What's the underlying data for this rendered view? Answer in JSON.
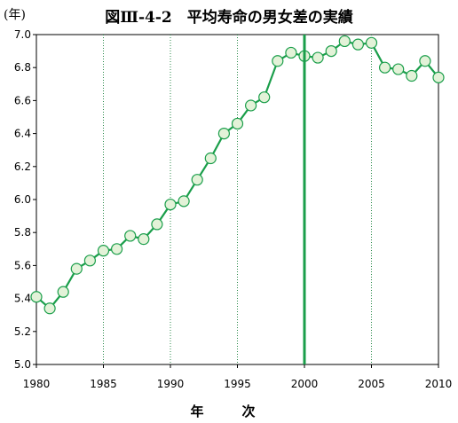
{
  "title": "図Ⅲ-4-2　平均寿命の男女差の実績",
  "y_unit": "(年)",
  "chart_data": {
    "type": "line",
    "title": "図Ⅲ-4-2　平均寿命の男女差の実績",
    "xlabel": "年　次",
    "ylabel": "(年)",
    "xlim": [
      1980,
      2010
    ],
    "ylim": [
      5.0,
      7.0
    ],
    "x_ticks": [
      1980,
      1985,
      1990,
      1995,
      2000,
      2005,
      2010
    ],
    "y_ticks": [
      5.0,
      5.2,
      5.4,
      5.6,
      5.8,
      6.0,
      6.2,
      6.4,
      6.6,
      6.8,
      7.0
    ],
    "y_tick_labels": [
      "5.0",
      "5.2",
      "5.4",
      "5.6",
      "5.8",
      "6.0",
      "6.2",
      "6.4",
      "6.6",
      "6.8",
      "7.0"
    ],
    "grid": "vertical dotted at 1985, 1990, 1995, 2005",
    "highlight_x": 2000,
    "series": [
      {
        "color": "#1a9e4a",
        "marker_fill": "#e3f2d8",
        "x": [
          1980,
          1981,
          1982,
          1983,
          1984,
          1985,
          1986,
          1987,
          1988,
          1989,
          1990,
          1991,
          1992,
          1993,
          1994,
          1995,
          1996,
          1997,
          1998,
          1999,
          2000,
          2001,
          2002,
          2003,
          2004,
          2005,
          2006,
          2007,
          2008,
          2009,
          2010
        ],
        "values": [
          5.41,
          5.34,
          5.44,
          5.58,
          5.63,
          5.69,
          5.7,
          5.78,
          5.76,
          5.85,
          5.97,
          5.99,
          6.12,
          6.25,
          6.4,
          6.46,
          6.57,
          6.62,
          6.84,
          6.89,
          6.87,
          6.86,
          6.9,
          6.96,
          6.94,
          6.95,
          6.8,
          6.79,
          6.75,
          6.84,
          6.74
        ]
      }
    ]
  }
}
